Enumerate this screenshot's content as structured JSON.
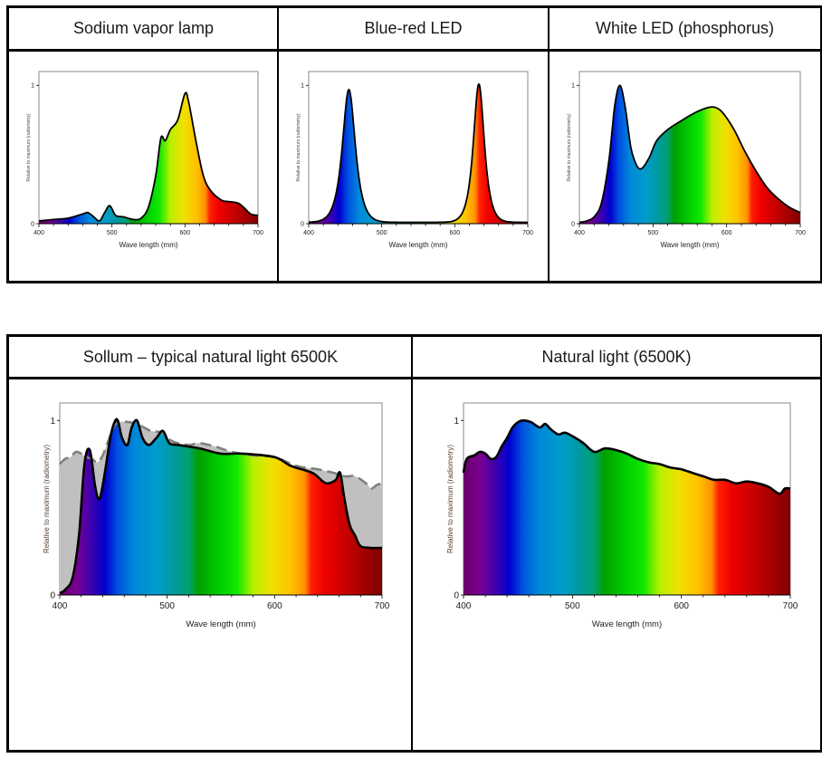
{
  "table_top": {
    "headers": [
      "Sodium vapor lamp",
      "Blue-red LED",
      "White LED (phosphorus)"
    ]
  },
  "table_bottom": {
    "headers": [
      "Sollum – typical natural light 6500K",
      "Natural light (6500K)"
    ]
  },
  "chart_data": [
    {
      "type": "area",
      "title": "Sodium vapor lamp",
      "xlabel": "Wave length (mm)",
      "ylabel": "Relative to maximum (radiometry)",
      "xlim": [
        400,
        700
      ],
      "ylim": [
        0,
        1.1
      ],
      "x_ticks": [
        400,
        500,
        600,
        700
      ],
      "y_ticks": [
        0,
        1
      ],
      "x": [
        400,
        420,
        440,
        460,
        467,
        475,
        483,
        490,
        497,
        505,
        515,
        530,
        540,
        550,
        560,
        567,
        573,
        580,
        590,
        600,
        605,
        615,
        625,
        635,
        650,
        660,
        672,
        680,
        690,
        700
      ],
      "values": [
        0.02,
        0.03,
        0.04,
        0.07,
        0.08,
        0.05,
        0.02,
        0.08,
        0.13,
        0.06,
        0.05,
        0.03,
        0.04,
        0.12,
        0.35,
        0.62,
        0.6,
        0.68,
        0.75,
        0.94,
        0.88,
        0.6,
        0.35,
        0.24,
        0.17,
        0.16,
        0.15,
        0.12,
        0.07,
        0.06
      ]
    },
    {
      "type": "area",
      "title": "Blue-red LED",
      "xlabel": "Wave length (mm)",
      "ylabel": "Relative to maximum (radiometry)",
      "xlim": [
        400,
        700
      ],
      "ylim": [
        0,
        1.1
      ],
      "x_ticks": [
        400,
        500,
        600,
        700
      ],
      "y_ticks": [
        0,
        1
      ],
      "series": [
        {
          "name": "Blue peak",
          "peak_nm": 455,
          "peak_value": 0.96
        },
        {
          "name": "Red peak",
          "peak_nm": 633,
          "peak_value": 1.0
        }
      ]
    },
    {
      "type": "area",
      "title": "White LED (phosphorus)",
      "xlabel": "Wave length (mm)",
      "ylabel": "Relative to maximum (radiometry)",
      "xlim": [
        400,
        700
      ],
      "ylim": [
        0,
        1.1
      ],
      "x_ticks": [
        400,
        500,
        600,
        700
      ],
      "y_ticks": [
        0,
        1
      ],
      "x": [
        400,
        410,
        420,
        430,
        440,
        448,
        455,
        462,
        470,
        478,
        485,
        495,
        505,
        520,
        540,
        560,
        575,
        585,
        595,
        610,
        625,
        640,
        655,
        670,
        685,
        700
      ],
      "values": [
        0.01,
        0.02,
        0.05,
        0.15,
        0.45,
        0.85,
        1.0,
        0.85,
        0.55,
        0.42,
        0.4,
        0.48,
        0.6,
        0.68,
        0.75,
        0.81,
        0.84,
        0.84,
        0.8,
        0.68,
        0.52,
        0.38,
        0.26,
        0.18,
        0.12,
        0.08
      ]
    },
    {
      "type": "area",
      "title": "Sollum – typical natural light 6500K",
      "xlabel": "Wave length (mm)",
      "ylabel": "Relative to maximum (radiometry)",
      "xlim": [
        400,
        700
      ],
      "ylim": [
        0,
        1.1
      ],
      "x_ticks": [
        400,
        500,
        600,
        700
      ],
      "y_ticks": [
        0,
        1
      ],
      "series": [
        {
          "name": "Sollum",
          "x": [
            400,
            405,
            412,
            418,
            423,
            428,
            433,
            437,
            442,
            447,
            451,
            454,
            458,
            463,
            467,
            472,
            477,
            483,
            490,
            496,
            502,
            510,
            530,
            550,
            570,
            600,
            615,
            635,
            645,
            650,
            657,
            661,
            665,
            670,
            675,
            680,
            690,
            700
          ],
          "values": [
            0.01,
            0.03,
            0.1,
            0.35,
            0.75,
            0.83,
            0.62,
            0.55,
            0.7,
            0.9,
            0.99,
            1.0,
            0.9,
            0.86,
            0.96,
            1.0,
            0.9,
            0.86,
            0.9,
            0.94,
            0.87,
            0.86,
            0.84,
            0.81,
            0.81,
            0.79,
            0.74,
            0.7,
            0.65,
            0.64,
            0.66,
            0.7,
            0.55,
            0.4,
            0.34,
            0.28,
            0.27,
            0.27
          ]
        },
        {
          "name": "Natural light (dashed reference)",
          "x": [
            400,
            405,
            410,
            415,
            420,
            425,
            430,
            435,
            440,
            445,
            450,
            455,
            465,
            475,
            485,
            495,
            505,
            520,
            530,
            545,
            560,
            580,
            600,
            620,
            640,
            655,
            665,
            675,
            685,
            690,
            695,
            700
          ],
          "values": [
            0.75,
            0.78,
            0.79,
            0.82,
            0.81,
            0.79,
            0.78,
            0.76,
            0.8,
            0.88,
            0.96,
            0.99,
            0.99,
            0.97,
            0.94,
            0.93,
            0.88,
            0.86,
            0.87,
            0.85,
            0.82,
            0.8,
            0.79,
            0.74,
            0.72,
            0.7,
            0.68,
            0.68,
            0.64,
            0.61,
            0.63,
            0.64
          ]
        }
      ]
    },
    {
      "type": "area",
      "title": "Natural light (6500K)",
      "xlabel": "Wave length (mm)",
      "ylabel": "Relative to maximum (radiometry)",
      "xlim": [
        400,
        700
      ],
      "ylim": [
        0,
        1.1
      ],
      "x_ticks": [
        400,
        500,
        600,
        700
      ],
      "y_ticks": [
        0,
        1
      ],
      "x": [
        400,
        403,
        410,
        415,
        420,
        425,
        430,
        435,
        440,
        445,
        450,
        455,
        462,
        470,
        475,
        480,
        487,
        493,
        500,
        510,
        520,
        530,
        540,
        550,
        560,
        570,
        580,
        590,
        600,
        610,
        620,
        630,
        640,
        650,
        660,
        670,
        680,
        690,
        695,
        700
      ],
      "values": [
        0.7,
        0.78,
        0.8,
        0.82,
        0.81,
        0.78,
        0.79,
        0.85,
        0.9,
        0.96,
        0.99,
        1.0,
        0.99,
        0.96,
        0.98,
        0.95,
        0.92,
        0.93,
        0.91,
        0.87,
        0.82,
        0.84,
        0.83,
        0.81,
        0.78,
        0.76,
        0.75,
        0.73,
        0.72,
        0.7,
        0.68,
        0.66,
        0.66,
        0.64,
        0.65,
        0.64,
        0.62,
        0.58,
        0.61,
        0.61
      ]
    }
  ]
}
